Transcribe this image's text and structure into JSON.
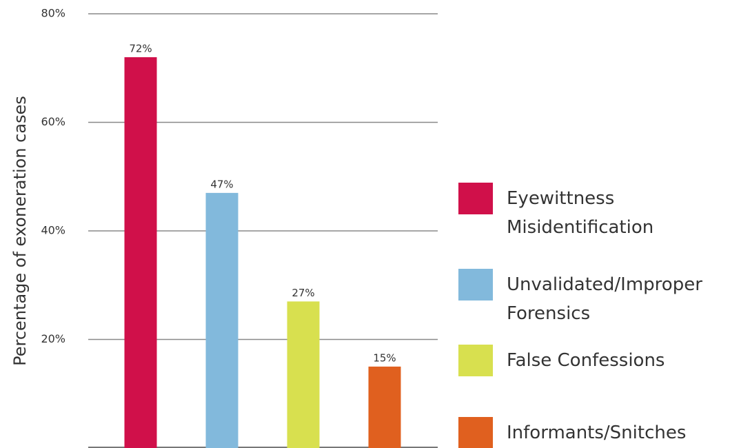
{
  "chart_data": {
    "type": "bar",
    "ylabel": "Percentage of exoneration cases",
    "categories": [
      "Eyewittness Misidentification",
      "Unvalidated/Improper Forensics",
      "False Confessions",
      "Informants/Snitches"
    ],
    "values": [
      72,
      47,
      27,
      15
    ],
    "value_labels": [
      "72%",
      "47%",
      "27%",
      "15%"
    ],
    "colors": [
      "#d0104a",
      "#82b9dc",
      "#d8e04f",
      "#e0601f"
    ],
    "ylim": [
      0,
      80
    ],
    "yticks": [
      {
        "value": 20,
        "label": "20%"
      },
      {
        "value": 40,
        "label": "40%"
      },
      {
        "value": 60,
        "label": "60%"
      },
      {
        "value": 80,
        "label": "80%"
      }
    ],
    "grid": true,
    "legend": "right"
  }
}
